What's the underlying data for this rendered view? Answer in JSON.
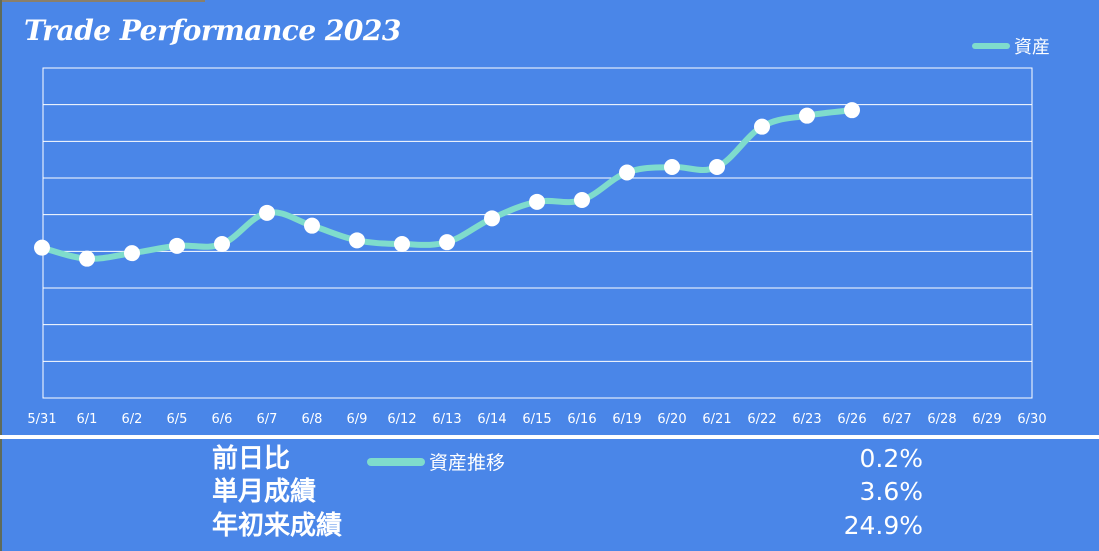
{
  "chart_data": {
    "type": "line",
    "title": "Trade Performance 2023",
    "categories": [
      "5/31",
      "6/1",
      "6/2",
      "6/5",
      "6/6",
      "6/7",
      "6/8",
      "6/9",
      "6/12",
      "6/13",
      "6/14",
      "6/15",
      "6/16",
      "6/19",
      "6/20",
      "6/21",
      "6/22",
      "6/23",
      "6/26",
      "6/27",
      "6/28",
      "6/29",
      "6/30"
    ],
    "series": [
      {
        "name": "資産",
        "color": "#7fdccc",
        "values": [
          6.1,
          5.8,
          5.95,
          6.15,
          6.2,
          7.05,
          6.7,
          6.3,
          6.2,
          6.25,
          6.9,
          7.35,
          7.4,
          8.15,
          8.3,
          8.3,
          9.4,
          9.7,
          9.85,
          null,
          null,
          null,
          null
        ]
      }
    ],
    "ylim": [
      2,
      11
    ],
    "grid": true,
    "legend": "top-right"
  },
  "summary": {
    "legend_label": "資産推移",
    "rows": [
      {
        "label": "前日比",
        "value": "0.2%"
      },
      {
        "label": "単月成績",
        "value": "3.6%"
      },
      {
        "label": "年初来成績",
        "value": "24.9%"
      }
    ]
  },
  "colors": {
    "background": "#4a86e8",
    "line": "#7fdccc",
    "grid": "#ffffff",
    "marker": "#ffffff"
  }
}
